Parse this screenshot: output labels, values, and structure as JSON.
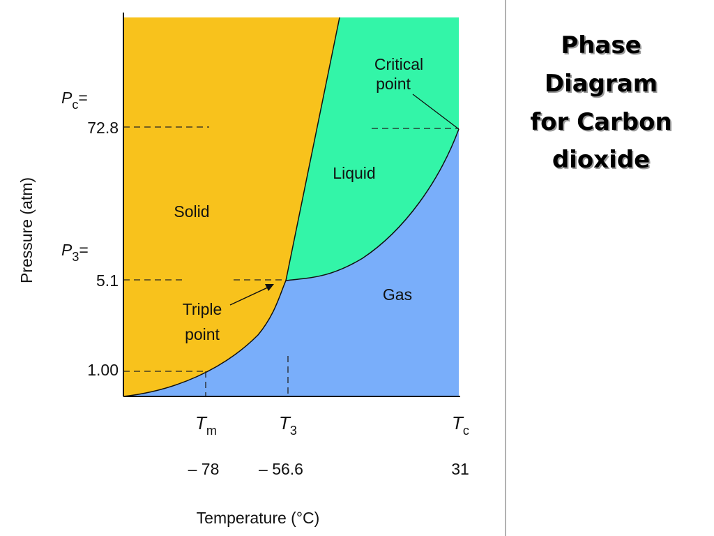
{
  "diagram": {
    "title": [
      "Phase",
      "Diagram",
      "for Carbon",
      "dioxide"
    ],
    "y_axis_title": "Pressure (atm)",
    "x_axis_title": "Temperature (°C)",
    "pressure_labels": [
      {
        "symbol": "P",
        "subscript": "c",
        "suffix": "=",
        "value": "72.8"
      },
      {
        "symbol": "P",
        "subscript": "3",
        "suffix": "=",
        "value": "5.1"
      },
      {
        "value": "1.00"
      }
    ],
    "temperature_labels": [
      {
        "symbol": "T",
        "subscript": "m",
        "value": "– 78"
      },
      {
        "symbol": "T",
        "subscript": "3",
        "value": "– 56.6"
      },
      {
        "symbol": "T",
        "subscript": "c",
        "value": "31"
      }
    ],
    "regions": [
      "Solid",
      "Liquid",
      "Gas"
    ],
    "critical_point": [
      "Critical",
      "point"
    ],
    "triple_point": [
      "Triple",
      "point"
    ]
  }
}
